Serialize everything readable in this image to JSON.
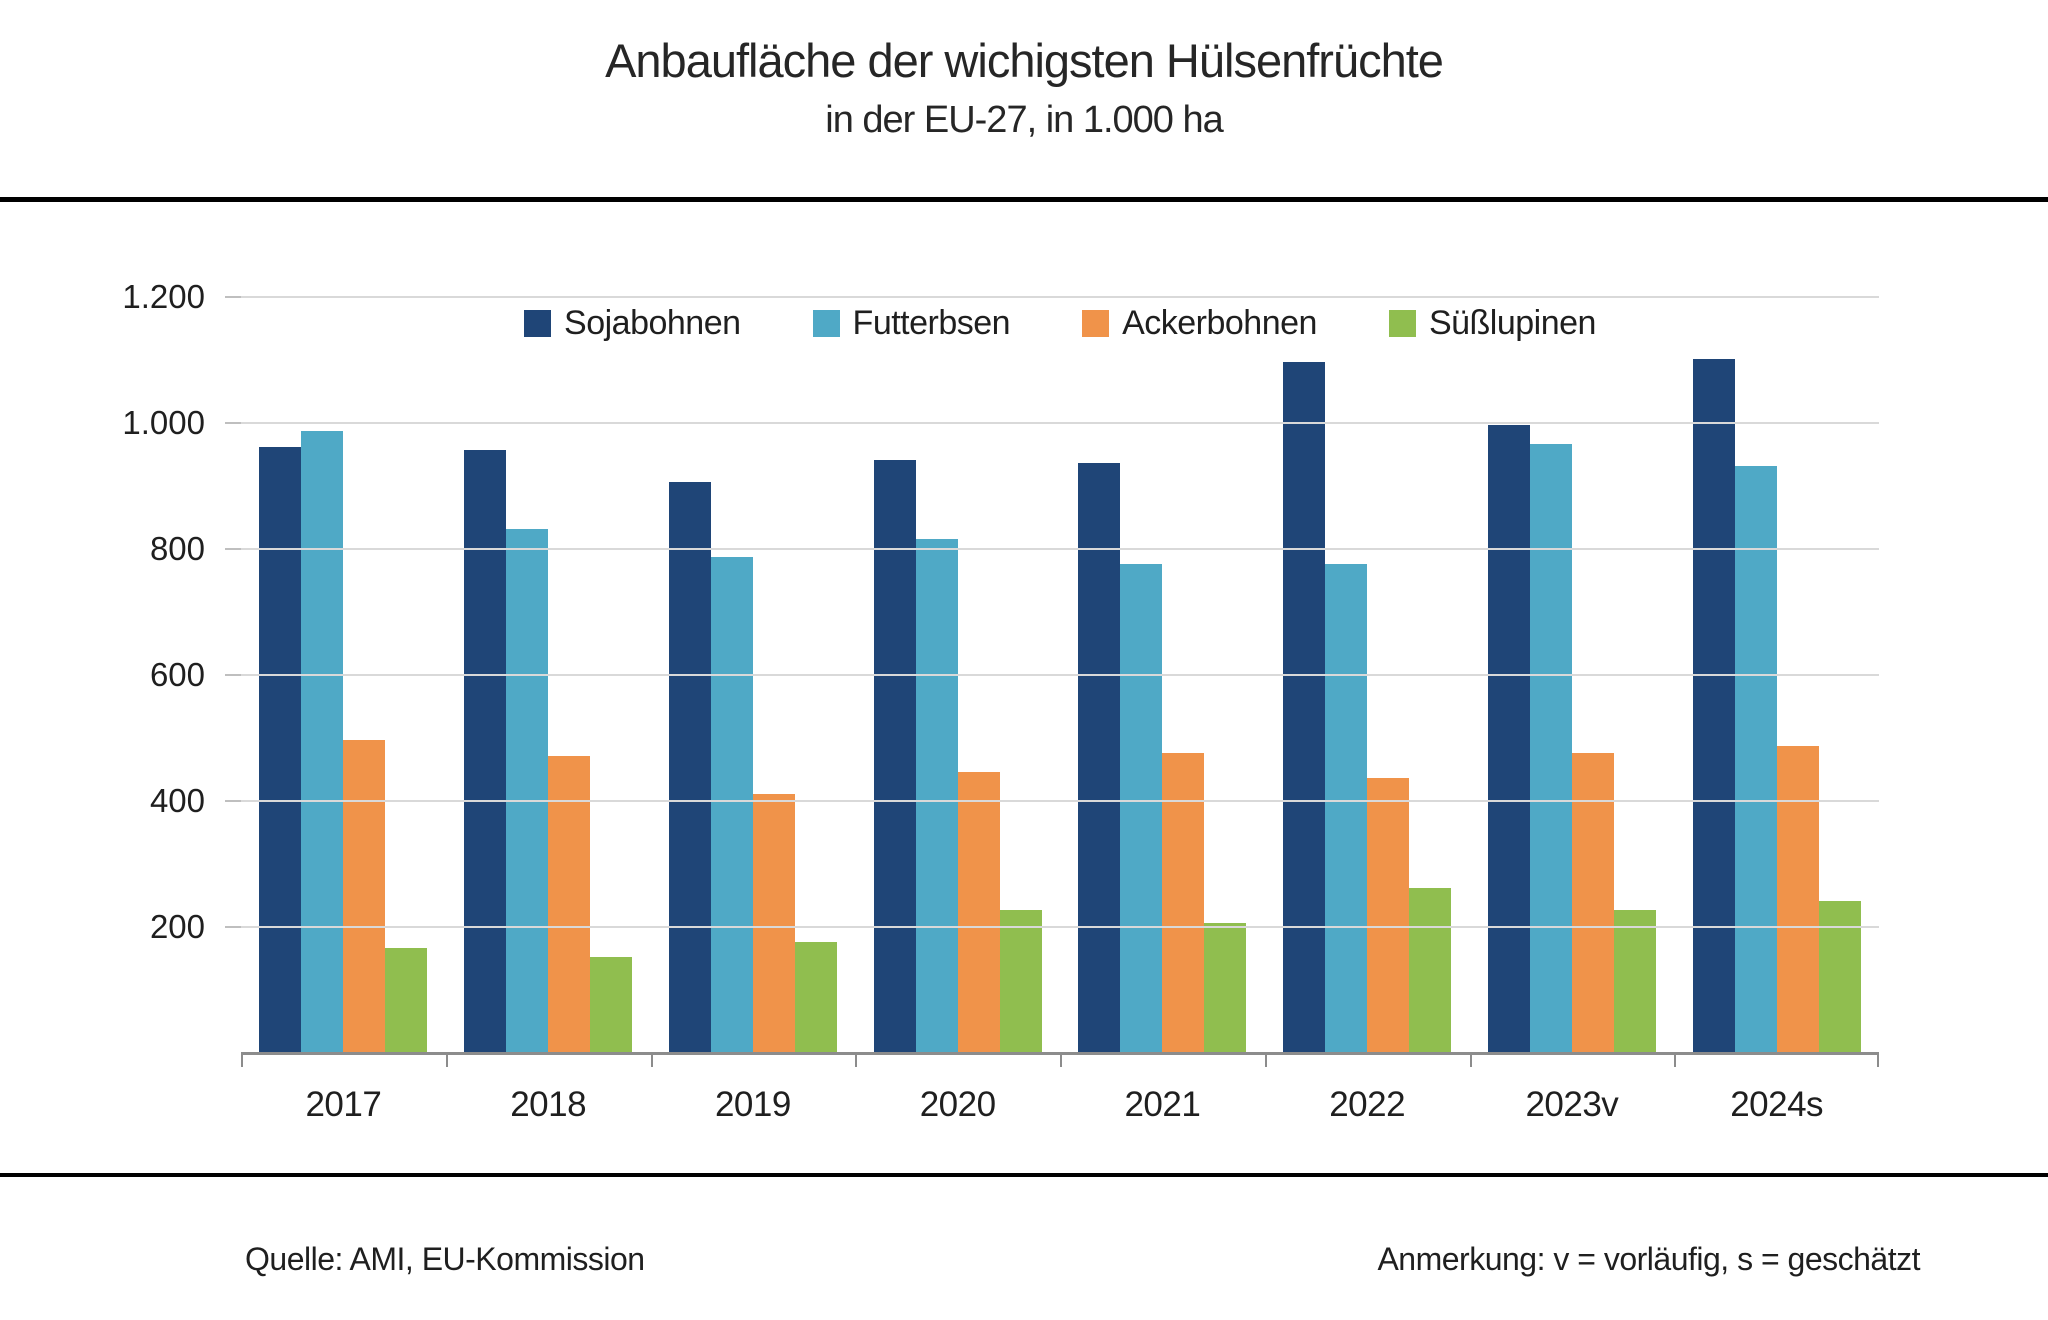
{
  "title": "Anbaufläche der wichigsten Hülsenfrüchte",
  "subtitle": "in der EU-27, in 1.000 ha",
  "footer": {
    "source": "Quelle: AMI, EU-Kommission",
    "note": "Anmerkung: v = vorläufig, s = geschätzt"
  },
  "style_colors": {
    "gridline": "#d9d9d9",
    "axis": "#8c8c8c",
    "separator_rule": "#000000",
    "text": "#1f1f1f"
  },
  "chart_data": {
    "type": "bar",
    "title": "Anbaufläche der wichigsten Hülsenfrüchte",
    "subtitle": "in der EU-27, in 1.000 ha",
    "xlabel": "",
    "ylabel": "",
    "unit": "1.000 ha",
    "grid": true,
    "legend_position": "top-inside",
    "ylim": [
      0,
      1200
    ],
    "ytick_step": 200,
    "ytick_values": [
      200,
      400,
      600,
      800,
      1000,
      1200
    ],
    "ytick_labels": [
      "200",
      "400",
      "600",
      "800",
      "1.000",
      "1.200"
    ],
    "categories": [
      "2017",
      "2018",
      "2019",
      "2020",
      "2021",
      "2022",
      "2023v",
      "2024s"
    ],
    "series": [
      {
        "name": "Sojabohnen",
        "color": "#1f4577",
        "values": [
          960,
          955,
          905,
          940,
          935,
          1095,
          995,
          1100
        ]
      },
      {
        "name": "Futterbsen",
        "color": "#4fa9c6",
        "values": [
          985,
          830,
          785,
          815,
          775,
          775,
          965,
          930
        ]
      },
      {
        "name": "Ackerbohnen",
        "color": "#f0934a",
        "values": [
          495,
          470,
          410,
          445,
          475,
          435,
          475,
          485
        ]
      },
      {
        "name": "Süßlupinen",
        "color": "#90be4f",
        "values": [
          165,
          150,
          175,
          225,
          205,
          260,
          225,
          240
        ]
      }
    ]
  }
}
